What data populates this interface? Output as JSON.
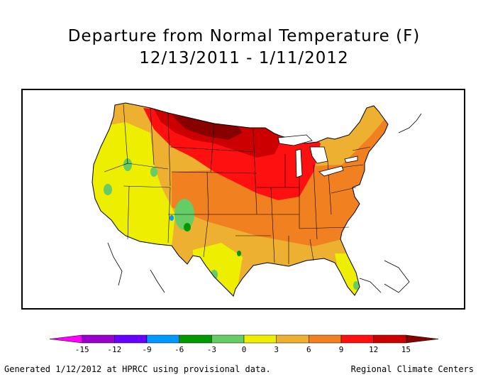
{
  "title_line1": "Departure from Normal Temperature (F)",
  "title_line2": "12/13/2011 - 1/11/2012",
  "legend": {
    "bins": [
      {
        "color": "#ff00ff"
      },
      {
        "color": "#9900cc"
      },
      {
        "color": "#6600ff"
      },
      {
        "color": "#0099ff"
      },
      {
        "color": "#009900"
      },
      {
        "color": "#66cc66"
      },
      {
        "color": "#eeee00"
      },
      {
        "color": "#eeb030"
      },
      {
        "color": "#f08020"
      },
      {
        "color": "#ff1010"
      },
      {
        "color": "#cc0000"
      },
      {
        "color": "#880000"
      }
    ],
    "ticks": [
      "-15",
      "-12",
      "-9",
      "-6",
      "-3",
      "0",
      "3",
      "6",
      "9",
      "12",
      "15"
    ]
  },
  "footer_left": "Generated 1/12/2012 at HPRCC using provisional data.",
  "footer_right": "Regional Climate Centers"
}
